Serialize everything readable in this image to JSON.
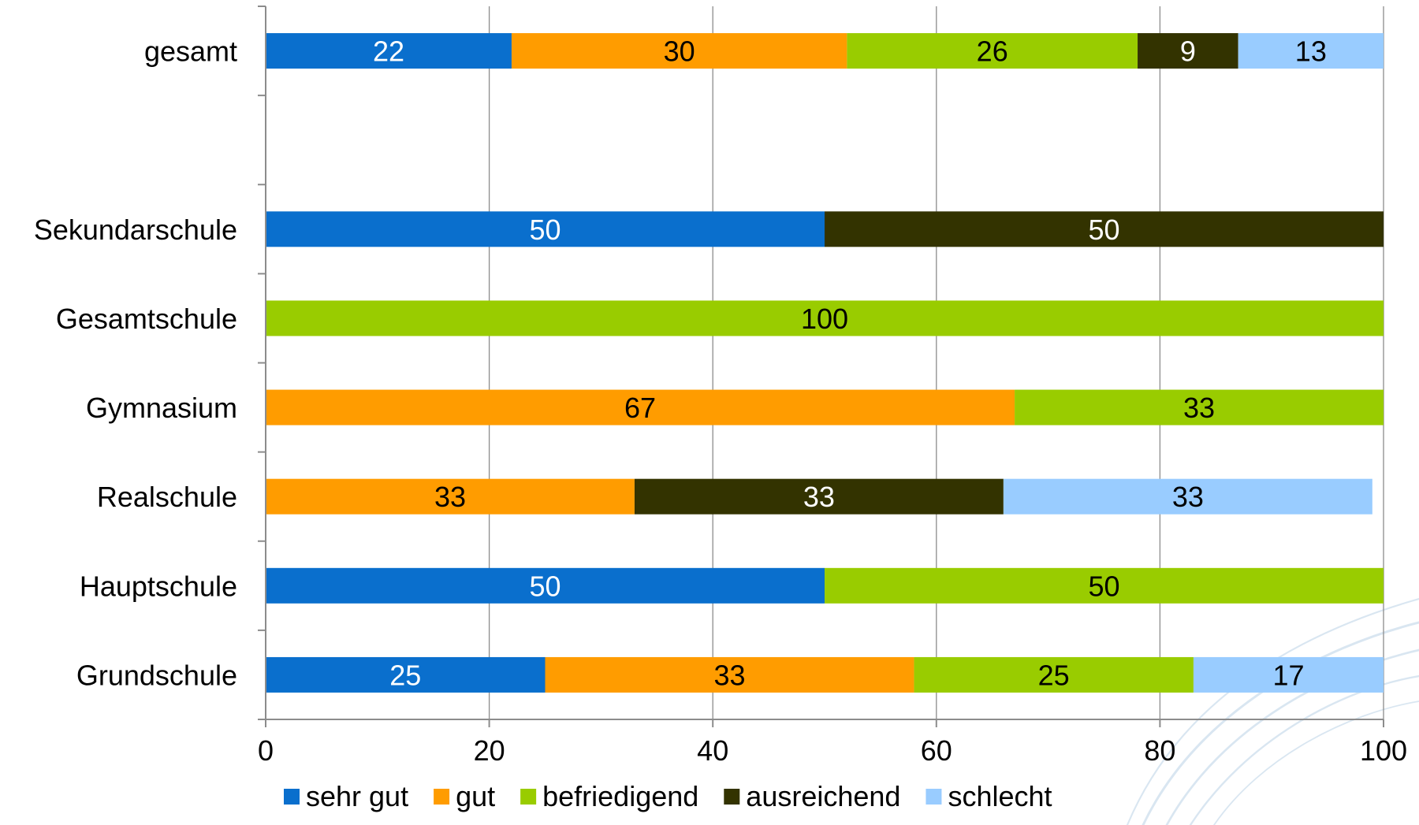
{
  "chart_data": {
    "type": "bar",
    "orientation": "horizontal",
    "stacked": true,
    "categories": [
      "gesamt",
      "",
      "Sekundarschule",
      "Gesamtschule",
      "Gymnasium",
      "Realschule",
      "Hauptschule",
      "Grundschule"
    ],
    "series": [
      {
        "name": "sehr gut",
        "values": [
          22,
          null,
          50,
          null,
          null,
          null,
          50,
          25
        ]
      },
      {
        "name": "gut",
        "values": [
          30,
          null,
          null,
          null,
          67,
          33,
          null,
          33
        ]
      },
      {
        "name": "befriedigend",
        "values": [
          26,
          null,
          null,
          100,
          33,
          null,
          50,
          25
        ]
      },
      {
        "name": "ausreichend",
        "values": [
          9,
          null,
          50,
          null,
          null,
          33,
          null,
          null
        ]
      },
      {
        "name": "schlecht",
        "values": [
          13,
          null,
          null,
          null,
          null,
          33,
          null,
          17
        ]
      }
    ],
    "xlim": [
      0,
      100
    ],
    "xticks": [
      "0",
      "20",
      "40",
      "60",
      "80",
      "100"
    ],
    "grid": "vertical",
    "legend_position": "bottom",
    "colors": [
      "#0a6fcd",
      "#ff9c00",
      "#99cc00",
      "#333300",
      "#99ccff"
    ],
    "label_colors": [
      "#ffffff",
      "#000000",
      "#000000",
      "#ffffff",
      "#000000"
    ]
  }
}
